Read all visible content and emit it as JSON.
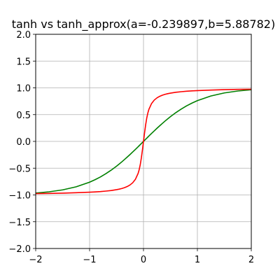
{
  "chart_data": {
    "type": "line",
    "title": "tanh vs tanh_approx(a=-0.239897,b=5.88782)",
    "xlabel": "",
    "ylabel": "",
    "xlim": [
      -2,
      2
    ],
    "ylim": [
      -2,
      2
    ],
    "grid": true,
    "x_ticks": [
      -2,
      -1,
      0,
      1,
      2
    ],
    "x_tick_labels": [
      "−2",
      "−1",
      "0",
      "1",
      "2"
    ],
    "y_ticks": [
      -2.0,
      -1.5,
      -1.0,
      -0.5,
      0.0,
      0.5,
      1.0,
      1.5,
      2.0
    ],
    "y_tick_labels": [
      "−2.0",
      "−1.5",
      "−1.0",
      "−0.5",
      "0.0",
      "0.5",
      "1.0",
      "1.5",
      "2.0"
    ],
    "x": [
      -2.0,
      -1.75,
      -1.5,
      -1.25,
      -1.0,
      -0.9,
      -0.8,
      -0.7,
      -0.6,
      -0.5,
      -0.45,
      -0.4,
      -0.35,
      -0.3,
      -0.25,
      -0.2,
      -0.15,
      -0.1,
      -0.08,
      -0.06,
      -0.04,
      -0.02,
      0.0,
      0.02,
      0.04,
      0.06,
      0.08,
      0.1,
      0.15,
      0.2,
      0.25,
      0.3,
      0.35,
      0.4,
      0.45,
      0.5,
      0.6,
      0.7,
      0.8,
      0.9,
      1.0,
      1.25,
      1.5,
      1.75,
      2.0
    ],
    "series": [
      {
        "color": "#008000",
        "values": [
          -0.964,
          -0.941,
          -0.905,
          -0.848,
          -0.762,
          -0.716,
          -0.664,
          -0.604,
          -0.537,
          -0.462,
          -0.422,
          -0.38,
          -0.336,
          -0.291,
          -0.245,
          -0.197,
          -0.149,
          -0.1,
          -0.08,
          -0.06,
          -0.04,
          -0.02,
          0.0,
          0.02,
          0.04,
          0.06,
          0.08,
          0.1,
          0.149,
          0.197,
          0.245,
          0.291,
          0.336,
          0.38,
          0.422,
          0.462,
          0.537,
          0.604,
          0.664,
          0.716,
          0.762,
          0.848,
          0.905,
          0.941,
          0.964
        ]
      },
      {
        "color": "#ff0000",
        "values": [
          -0.975,
          -0.971,
          -0.966,
          -0.959,
          -0.949,
          -0.943,
          -0.937,
          -0.928,
          -0.917,
          -0.901,
          -0.891,
          -0.879,
          -0.863,
          -0.842,
          -0.813,
          -0.772,
          -0.708,
          -0.598,
          -0.528,
          -0.434,
          -0.309,
          -0.161,
          0.0,
          0.161,
          0.309,
          0.434,
          0.528,
          0.598,
          0.708,
          0.772,
          0.813,
          0.842,
          0.863,
          0.879,
          0.891,
          0.901,
          0.917,
          0.928,
          0.937,
          0.943,
          0.949,
          0.959,
          0.966,
          0.971,
          0.975
        ]
      }
    ]
  }
}
